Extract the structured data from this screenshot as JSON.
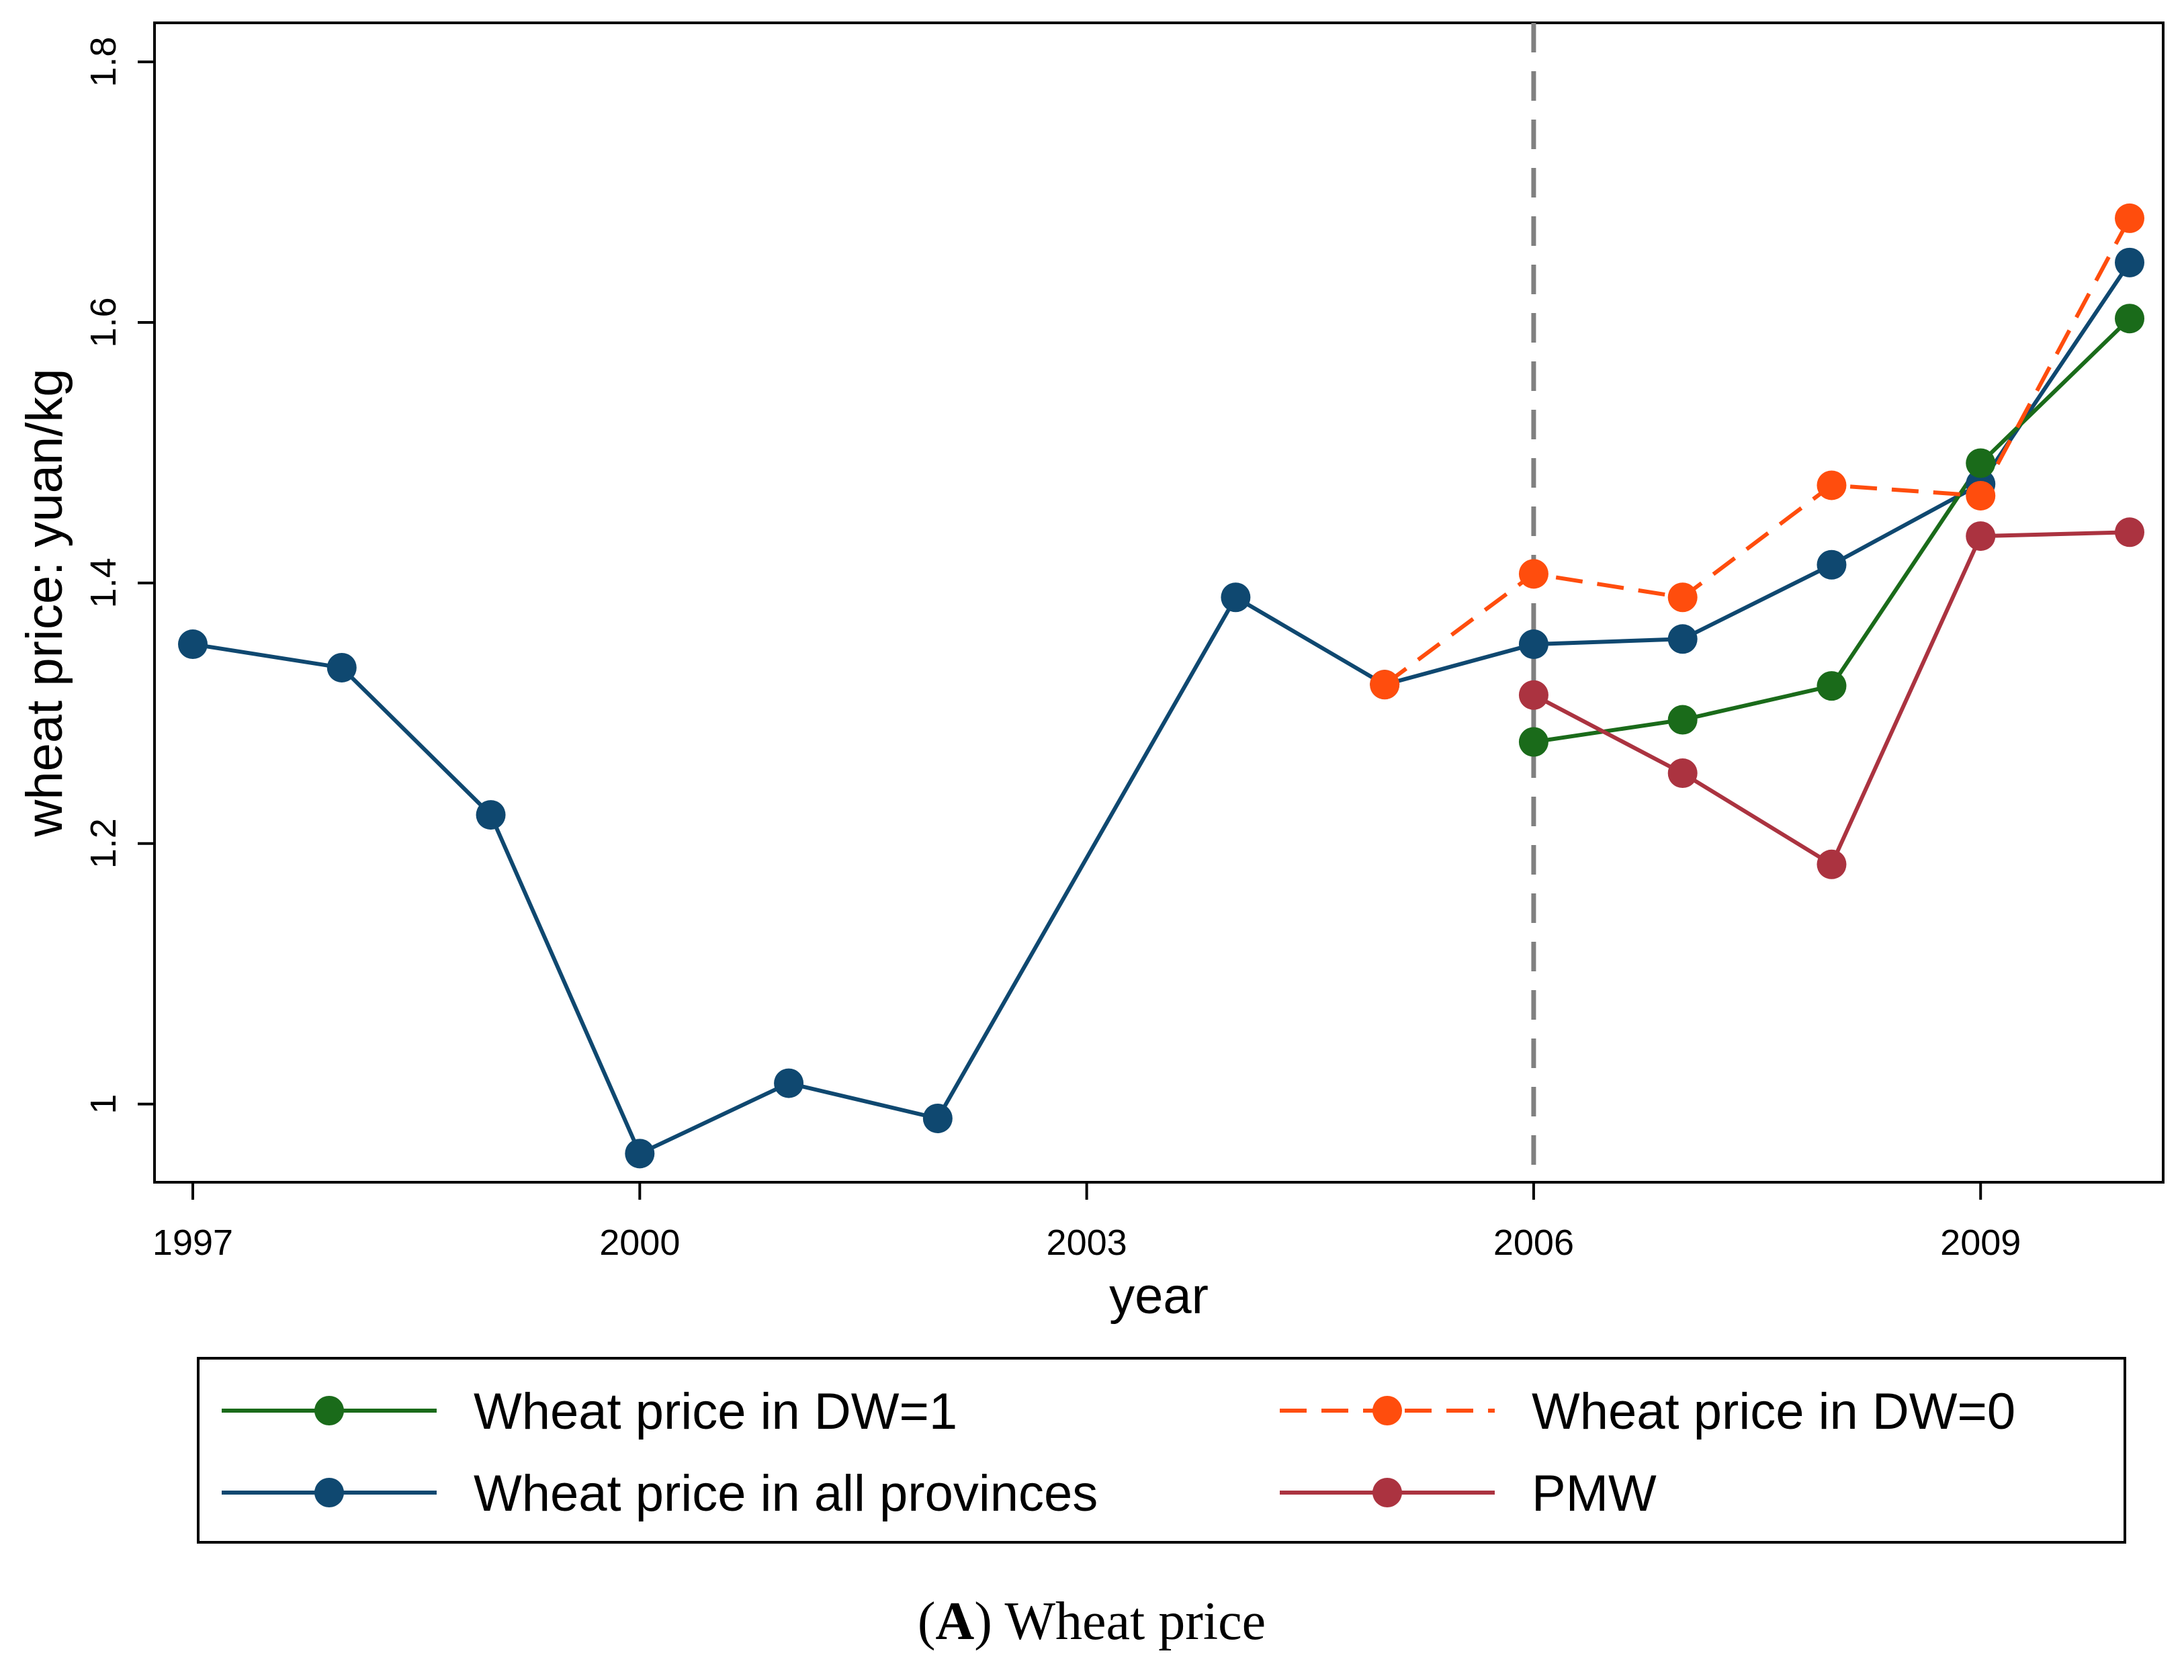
{
  "chart_data": {
    "type": "line",
    "title": "",
    "xlabel": "year",
    "ylabel": "wheat price: yuan/kg",
    "xlim": [
      1997,
      2010
    ],
    "ylim": [
      0.94,
      1.83
    ],
    "xticks": [
      1997,
      2000,
      2003,
      2006,
      2009
    ],
    "xtick_labels": [
      "1997",
      "2000",
      "2003",
      "2006",
      "2009"
    ],
    "yticks": [
      1.0,
      1.2,
      1.4,
      1.6,
      1.8
    ],
    "ytick_labels": [
      "1",
      "1.2",
      "1.4",
      "1.6",
      "1.8"
    ],
    "grid": false,
    "reference_line": {
      "x": 2006,
      "style": "dashed",
      "color": "#808080"
    },
    "legend_position": "bottom",
    "series": [
      {
        "name": "Wheat price in DW=1",
        "color": "#1a6b1a",
        "style": "solid",
        "x": [
          2006,
          2007,
          2008,
          2009,
          2010
        ],
        "values": [
          1.278,
          1.295,
          1.321,
          1.492,
          1.603
        ]
      },
      {
        "name": "Wheat price in DW=0",
        "color": "#ff4d0d",
        "style": "dashed",
        "x": [
          2005,
          2006,
          2007,
          2008,
          2009,
          2010
        ],
        "values": [
          1.322,
          1.407,
          1.389,
          1.475,
          1.467,
          1.68
        ]
      },
      {
        "name": "Wheat price in all provinces",
        "color": "#0f4870",
        "style": "solid",
        "x": [
          1997,
          1998,
          1999,
          2000,
          2001,
          2002,
          2004,
          2005,
          2006,
          2007,
          2008,
          2009,
          2010
        ],
        "values": [
          1.353,
          1.335,
          1.222,
          0.962,
          1.016,
          0.989,
          1.389,
          1.322,
          1.353,
          1.357,
          1.414,
          1.476,
          1.646
        ]
      },
      {
        "name": "PMW",
        "color": "#ab3340",
        "style": "solid",
        "x": [
          2006,
          2007,
          2008,
          2009,
          2010
        ],
        "values": [
          1.314,
          1.254,
          1.184,
          1.436,
          1.439
        ]
      }
    ],
    "legend": [
      {
        "name": "Wheat price in DW=1",
        "series_index": 0
      },
      {
        "name": "Wheat price in DW=0",
        "series_index": 1
      },
      {
        "name": "Wheat price in all provinces",
        "series_index": 2
      },
      {
        "name": "PMW",
        "series_index": 3
      }
    ]
  },
  "caption": {
    "label": "A",
    "open_paren": "(",
    "close_paren": ")",
    "text": " Wheat price"
  }
}
